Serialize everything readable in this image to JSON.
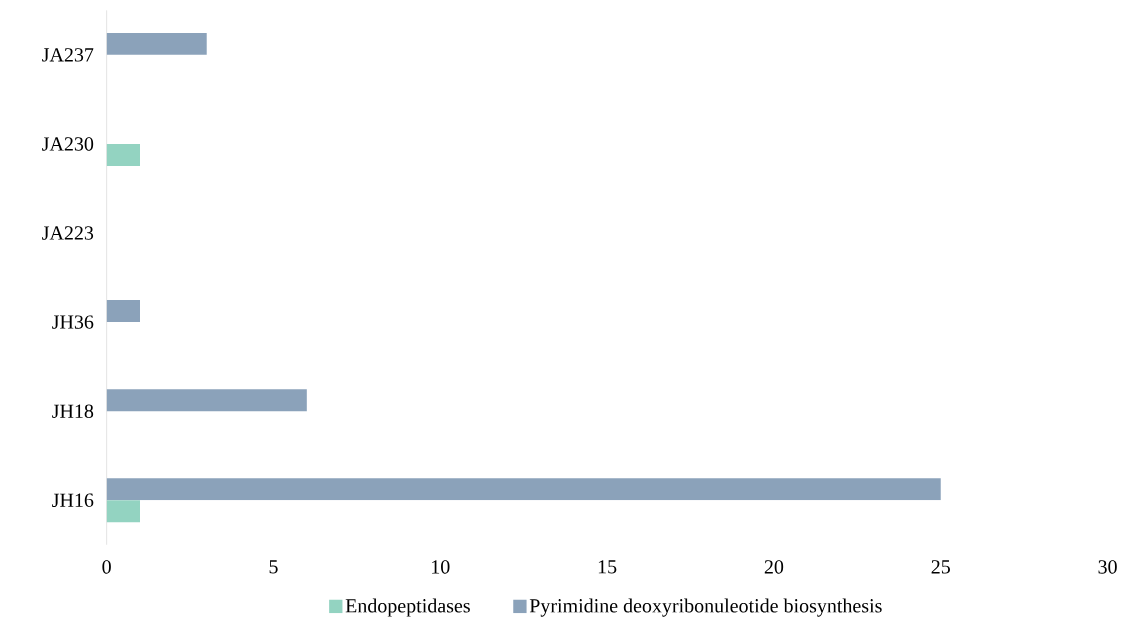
{
  "chart_data": {
    "type": "bar",
    "orientation": "horizontal",
    "categories": [
      "JA237",
      "JA230",
      "JA223",
      "JH36",
      "JH18",
      "JH16"
    ],
    "series": [
      {
        "name": "Endopeptidases",
        "color": "#93d3c1",
        "values": [
          null,
          1,
          null,
          null,
          null,
          1
        ]
      },
      {
        "name": "Pyrimidine deoxyribonuleotide biosynthesis",
        "color": "#8ba2ba",
        "values": [
          3,
          null,
          null,
          1,
          6,
          25
        ]
      }
    ],
    "xlim": [
      0,
      30
    ],
    "xticks": [
      0,
      5,
      10,
      15,
      20,
      25,
      30
    ],
    "grid": false,
    "legend": "bottom"
  }
}
